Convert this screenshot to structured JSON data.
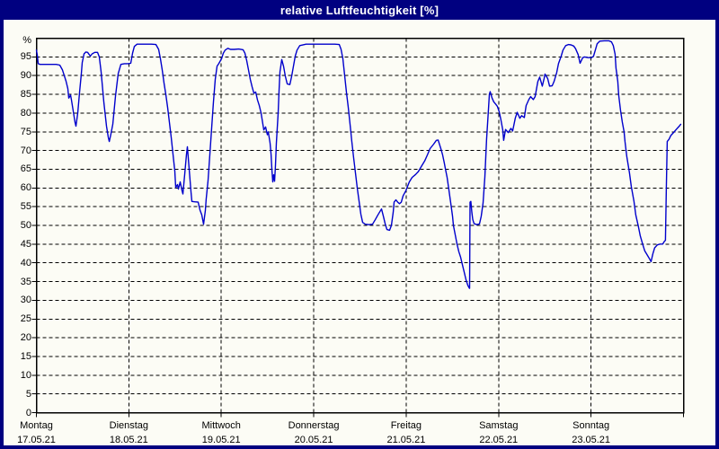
{
  "window": {
    "title": "relative Luftfeuchtigkeit [%]"
  },
  "colors": {
    "frame": "#000080",
    "title_text": "#ffffff",
    "background": "#fcfcf5",
    "grid": "#000000",
    "line": "#0000cc",
    "text": "#000000"
  },
  "chart_data": {
    "type": "line",
    "title": "relative Luftfeuchtigkeit [%]",
    "ylabel": "relative Luftfeuchtigkeit",
    "y_axis_unit": "%",
    "ylim": [
      0,
      100
    ],
    "y_ticks": [
      0,
      5,
      10,
      15,
      20,
      25,
      30,
      35,
      40,
      45,
      50,
      55,
      60,
      65,
      70,
      75,
      80,
      85,
      90,
      95
    ],
    "xlim_days": [
      0,
      7
    ],
    "grid": "dashed",
    "legend": "none",
    "x_days": [
      {
        "weekday": "Montag",
        "date": "17.05.21"
      },
      {
        "weekday": "Dienstag",
        "date": "18.05.21"
      },
      {
        "weekday": "Mittwoch",
        "date": "19.05.21"
      },
      {
        "weekday": "Donnerstag",
        "date": "20.05.21"
      },
      {
        "weekday": "Freitag",
        "date": "21.05.21"
      },
      {
        "weekday": "Samstag",
        "date": "22.05.21"
      },
      {
        "weekday": "Sonntag",
        "date": "23.05.21"
      }
    ],
    "series": [
      {
        "name": "relative Luftfeuchtigkeit [%]",
        "color": "#0000cc",
        "x_unit": "days_from_start",
        "points": [
          [
            0,
            96.8
          ],
          [
            0.01,
            95.5
          ],
          [
            0.019,
            93.2
          ],
          [
            0.039,
            93
          ],
          [
            0.097,
            93
          ],
          [
            0.156,
            93
          ],
          [
            0.214,
            93
          ],
          [
            0.253,
            92.8
          ],
          [
            0.282,
            91.5
          ],
          [
            0.301,
            90
          ],
          [
            0.321,
            88.5
          ],
          [
            0.34,
            86.5
          ],
          [
            0.35,
            84
          ],
          [
            0.369,
            84.8
          ],
          [
            0.379,
            83.5
          ],
          [
            0.399,
            80.5
          ],
          [
            0.418,
            77.5
          ],
          [
            0.428,
            76.5
          ],
          [
            0.447,
            80
          ],
          [
            0.467,
            85.5
          ],
          [
            0.486,
            90.5
          ],
          [
            0.496,
            93.5
          ],
          [
            0.515,
            95.8
          ],
          [
            0.535,
            96.3
          ],
          [
            0.554,
            96.2
          ],
          [
            0.583,
            95.2
          ],
          [
            0.603,
            95.8
          ],
          [
            0.632,
            96.2
          ],
          [
            0.661,
            96.2
          ],
          [
            0.681,
            95
          ],
          [
            0.7,
            91
          ],
          [
            0.729,
            83
          ],
          [
            0.758,
            76.5
          ],
          [
            0.778,
            73.5
          ],
          [
            0.788,
            72.4
          ],
          [
            0.807,
            74.5
          ],
          [
            0.826,
            77
          ],
          [
            0.856,
            84.5
          ],
          [
            0.885,
            90.5
          ],
          [
            0.914,
            93
          ],
          [
            0.953,
            93.2
          ],
          [
            0.992,
            93.2
          ],
          [
            1.021,
            93.3
          ],
          [
            1.04,
            96
          ],
          [
            1.06,
            97.8
          ],
          [
            1.089,
            98.4
          ],
          [
            1.167,
            98.4
          ],
          [
            1.244,
            98.4
          ],
          [
            1.293,
            98.3
          ],
          [
            1.322,
            97
          ],
          [
            1.342,
            94.5
          ],
          [
            1.361,
            91.5
          ],
          [
            1.381,
            88
          ],
          [
            1.4,
            85
          ],
          [
            1.419,
            81.5
          ],
          [
            1.439,
            77.5
          ],
          [
            1.458,
            73.5
          ],
          [
            1.478,
            69
          ],
          [
            1.497,
            64.5
          ],
          [
            1.507,
            60.1
          ],
          [
            1.526,
            60.9
          ],
          [
            1.536,
            59.7
          ],
          [
            1.556,
            61.6
          ],
          [
            1.575,
            59.3
          ],
          [
            1.585,
            58.4
          ],
          [
            1.604,
            63.6
          ],
          [
            1.624,
            69
          ],
          [
            1.633,
            71
          ],
          [
            1.653,
            65
          ],
          [
            1.672,
            59
          ],
          [
            1.682,
            56.4
          ],
          [
            1.711,
            56.3
          ],
          [
            1.75,
            56.2
          ],
          [
            1.769,
            54.1
          ],
          [
            1.789,
            52.8
          ],
          [
            1.808,
            50.3
          ],
          [
            1.828,
            54
          ],
          [
            1.837,
            57
          ],
          [
            1.857,
            62
          ],
          [
            1.876,
            69
          ],
          [
            1.896,
            76
          ],
          [
            1.915,
            83
          ],
          [
            1.935,
            89
          ],
          [
            1.954,
            92.5
          ],
          [
            1.973,
            93.2
          ],
          [
            2.003,
            94.5
          ],
          [
            2.022,
            96
          ],
          [
            2.042,
            96.8
          ],
          [
            2.071,
            97.3
          ],
          [
            2.1,
            97
          ],
          [
            2.139,
            97
          ],
          [
            2.188,
            97.1
          ],
          [
            2.236,
            96.9
          ],
          [
            2.256,
            96
          ],
          [
            2.275,
            94
          ],
          [
            2.294,
            91.5
          ],
          [
            2.314,
            89
          ],
          [
            2.333,
            87
          ],
          [
            2.353,
            85.3
          ],
          [
            2.372,
            85.6
          ],
          [
            2.392,
            83.5
          ],
          [
            2.411,
            82
          ],
          [
            2.431,
            80
          ],
          [
            2.45,
            77
          ],
          [
            2.46,
            75.5
          ],
          [
            2.479,
            76.3
          ],
          [
            2.499,
            74.2
          ],
          [
            2.508,
            75
          ],
          [
            2.528,
            72
          ],
          [
            2.538,
            69
          ],
          [
            2.547,
            65
          ],
          [
            2.557,
            61.6
          ],
          [
            2.567,
            63.5
          ],
          [
            2.576,
            61.8
          ],
          [
            2.586,
            66
          ],
          [
            2.596,
            72
          ],
          [
            2.615,
            80
          ],
          [
            2.625,
            86
          ],
          [
            2.635,
            91
          ],
          [
            2.654,
            94.3
          ],
          [
            2.674,
            92.5
          ],
          [
            2.693,
            89.8
          ],
          [
            2.713,
            87.8
          ],
          [
            2.742,
            87.6
          ],
          [
            2.761,
            89.8
          ],
          [
            2.781,
            92.5
          ],
          [
            2.8,
            95.2
          ],
          [
            2.819,
            96.8
          ],
          [
            2.849,
            98
          ],
          [
            2.917,
            98.4
          ],
          [
            2.994,
            98.4
          ],
          [
            3.072,
            98.4
          ],
          [
            3.15,
            98.4
          ],
          [
            3.228,
            98.4
          ],
          [
            3.276,
            98.3
          ],
          [
            3.296,
            97
          ],
          [
            3.315,
            94.5
          ],
          [
            3.335,
            90
          ],
          [
            3.354,
            85.5
          ],
          [
            3.374,
            81.5
          ],
          [
            3.393,
            77
          ],
          [
            3.412,
            72.5
          ],
          [
            3.432,
            68
          ],
          [
            3.451,
            64
          ],
          [
            3.471,
            60
          ],
          [
            3.49,
            56.5
          ],
          [
            3.51,
            53
          ],
          [
            3.529,
            50.8
          ],
          [
            3.558,
            50.3
          ],
          [
            3.597,
            50.2
          ],
          [
            3.636,
            50.3
          ],
          [
            3.665,
            51.5
          ],
          [
            3.694,
            52.8
          ],
          [
            3.724,
            54
          ],
          [
            3.733,
            54.4
          ],
          [
            3.753,
            52.5
          ],
          [
            3.772,
            50.5
          ],
          [
            3.792,
            48.9
          ],
          [
            3.821,
            48.7
          ],
          [
            3.84,
            50
          ],
          [
            3.86,
            53.5
          ],
          [
            3.869,
            56.2
          ],
          [
            3.889,
            56.8
          ],
          [
            3.908,
            56.2
          ],
          [
            3.928,
            55.8
          ],
          [
            3.947,
            56.2
          ],
          [
            3.967,
            57.9
          ],
          [
            3.996,
            59.2
          ],
          [
            4.034,
            61.6
          ],
          [
            4.064,
            62.8
          ],
          [
            4.102,
            63.6
          ],
          [
            4.132,
            64.4
          ],
          [
            4.161,
            65.6
          ],
          [
            4.2,
            67.2
          ],
          [
            4.229,
            68.8
          ],
          [
            4.258,
            70.5
          ],
          [
            4.297,
            71.7
          ],
          [
            4.326,
            72.7
          ],
          [
            4.346,
            72.8
          ],
          [
            4.375,
            70.5
          ],
          [
            4.394,
            68.8
          ],
          [
            4.414,
            66.5
          ],
          [
            4.424,
            65.2
          ],
          [
            4.443,
            62.8
          ],
          [
            4.462,
            59.6
          ],
          [
            4.482,
            56
          ],
          [
            4.501,
            52.5
          ],
          [
            4.511,
            50
          ],
          [
            4.531,
            47.5
          ],
          [
            4.55,
            45
          ],
          [
            4.569,
            43
          ],
          [
            4.589,
            41.5
          ],
          [
            4.608,
            39.5
          ],
          [
            4.628,
            37.5
          ],
          [
            4.647,
            35.5
          ],
          [
            4.667,
            34
          ],
          [
            4.681,
            33.3
          ],
          [
            4.686,
            33.2
          ],
          [
            4.691,
            56.2
          ],
          [
            4.7,
            56.4
          ],
          [
            4.71,
            53.5
          ],
          [
            4.72,
            51.6
          ],
          [
            4.734,
            50.5
          ],
          [
            4.764,
            50.2
          ],
          [
            4.793,
            50.4
          ],
          [
            4.812,
            52.4
          ],
          [
            4.832,
            56
          ],
          [
            4.851,
            63
          ],
          [
            4.87,
            73
          ],
          [
            4.89,
            81
          ],
          [
            4.9,
            85
          ],
          [
            4.909,
            85.7
          ],
          [
            4.929,
            84
          ],
          [
            4.948,
            83
          ],
          [
            4.968,
            82.4
          ],
          [
            4.987,
            81.8
          ],
          [
            5.007,
            80.3
          ],
          [
            5.026,
            78
          ],
          [
            5.045,
            75.5
          ],
          [
            5.055,
            72.7
          ],
          [
            5.075,
            75.6
          ],
          [
            5.104,
            74.8
          ],
          [
            5.133,
            75.9
          ],
          [
            5.152,
            75.2
          ],
          [
            5.181,
            78.7
          ],
          [
            5.201,
            80.2
          ],
          [
            5.23,
            78.6
          ],
          [
            5.249,
            79.3
          ],
          [
            5.278,
            78.8
          ],
          [
            5.298,
            82
          ],
          [
            5.327,
            83.6
          ],
          [
            5.346,
            84.4
          ],
          [
            5.375,
            83.6
          ],
          [
            5.395,
            84.4
          ],
          [
            5.424,
            88.4
          ],
          [
            5.444,
            89.6
          ],
          [
            5.473,
            87.2
          ],
          [
            5.492,
            89.2
          ],
          [
            5.502,
            90.4
          ],
          [
            5.531,
            89.2
          ],
          [
            5.551,
            87.2
          ],
          [
            5.58,
            87.3
          ],
          [
            5.599,
            88.4
          ],
          [
            5.628,
            90.8
          ],
          [
            5.648,
            93.2
          ],
          [
            5.677,
            95.2
          ],
          [
            5.696,
            96.8
          ],
          [
            5.725,
            98
          ],
          [
            5.755,
            98.3
          ],
          [
            5.784,
            98.2
          ],
          [
            5.813,
            97.9
          ],
          [
            5.832,
            97.2
          ],
          [
            5.861,
            95.6
          ],
          [
            5.881,
            93.3
          ],
          [
            5.91,
            94.8
          ],
          [
            5.93,
            95
          ],
          [
            5.968,
            94.8
          ],
          [
            6.007,
            94.8
          ],
          [
            6.027,
            95.2
          ],
          [
            6.046,
            96.8
          ],
          [
            6.066,
            98.5
          ],
          [
            6.095,
            99.2
          ],
          [
            6.143,
            99.3
          ],
          [
            6.192,
            99.3
          ],
          [
            6.221,
            99
          ],
          [
            6.241,
            98
          ],
          [
            6.26,
            95.7
          ],
          [
            6.27,
            92
          ],
          [
            6.289,
            88.4
          ],
          [
            6.299,
            84.8
          ],
          [
            6.318,
            80.8
          ],
          [
            6.338,
            77.6
          ],
          [
            6.357,
            75
          ],
          [
            6.367,
            72.4
          ],
          [
            6.387,
            68.4
          ],
          [
            6.416,
            64
          ],
          [
            6.435,
            60.4
          ],
          [
            6.464,
            56.4
          ],
          [
            6.484,
            52.8
          ],
          [
            6.513,
            49.6
          ],
          [
            6.532,
            47.2
          ],
          [
            6.561,
            44.8
          ],
          [
            6.581,
            43.2
          ],
          [
            6.61,
            42
          ],
          [
            6.63,
            41.2
          ],
          [
            6.649,
            40.3
          ],
          [
            6.668,
            42.4
          ],
          [
            6.688,
            44
          ],
          [
            6.717,
            44.8
          ],
          [
            6.746,
            45
          ],
          [
            6.775,
            45
          ],
          [
            6.795,
            45.8
          ],
          [
            6.805,
            46
          ],
          [
            6.814,
            60
          ],
          [
            6.824,
            72.4
          ],
          [
            6.843,
            73
          ],
          [
            6.863,
            74
          ],
          [
            6.892,
            74.8
          ],
          [
            6.921,
            75.6
          ],
          [
            6.95,
            76.4
          ],
          [
            6.97,
            77
          ]
        ]
      }
    ]
  }
}
